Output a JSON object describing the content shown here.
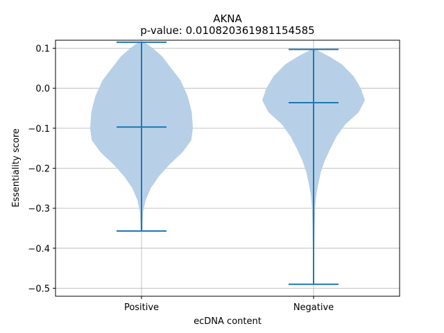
{
  "chart_data": {
    "type": "violin",
    "title": "AKNA",
    "subtitle": "p-value: 0.010820361981154585",
    "xlabel": "ecDNA content",
    "ylabel": "Essentiality score",
    "categories": [
      "Positive",
      "Negative"
    ],
    "ylim": [
      -0.52,
      0.12
    ],
    "yticks": [
      0.1,
      0.0,
      -0.1,
      -0.2,
      -0.3,
      -0.4,
      -0.5
    ],
    "ytick_labels": [
      "0.1",
      "0.0",
      "−0.1",
      "−0.2",
      "−0.3",
      "−0.4",
      "−0.5"
    ],
    "grid": true,
    "series": [
      {
        "category": "Positive",
        "max": 0.115,
        "median": -0.097,
        "min": -0.357,
        "density": [
          [
            0.115,
            0.06
          ],
          [
            0.1,
            0.22
          ],
          [
            0.08,
            0.4
          ],
          [
            0.05,
            0.58
          ],
          [
            0.02,
            0.76
          ],
          [
            -0.02,
            0.9
          ],
          [
            -0.06,
            0.98
          ],
          [
            -0.1,
            1.0
          ],
          [
            -0.13,
            0.97
          ],
          [
            -0.16,
            0.8
          ],
          [
            -0.19,
            0.55
          ],
          [
            -0.22,
            0.34
          ],
          [
            -0.25,
            0.18
          ],
          [
            -0.28,
            0.08
          ],
          [
            -0.31,
            0.03
          ],
          [
            -0.34,
            0.02
          ],
          [
            -0.357,
            0.02
          ]
        ]
      },
      {
        "category": "Negative",
        "max": 0.097,
        "median": -0.036,
        "min": -0.49,
        "density": [
          [
            0.097,
            0.04
          ],
          [
            0.08,
            0.3
          ],
          [
            0.06,
            0.55
          ],
          [
            0.03,
            0.78
          ],
          [
            0.0,
            0.92
          ],
          [
            -0.03,
            1.0
          ],
          [
            -0.06,
            0.88
          ],
          [
            -0.09,
            0.62
          ],
          [
            -0.12,
            0.45
          ],
          [
            -0.15,
            0.33
          ],
          [
            -0.18,
            0.22
          ],
          [
            -0.21,
            0.14
          ],
          [
            -0.24,
            0.09
          ],
          [
            -0.27,
            0.05
          ],
          [
            -0.3,
            0.03
          ],
          [
            -0.35,
            0.02
          ],
          [
            -0.4,
            0.015
          ],
          [
            -0.45,
            0.01
          ],
          [
            -0.49,
            0.008
          ]
        ]
      }
    ],
    "colors": {
      "body": "#b7d0e7",
      "lines": "#1f77b4",
      "grid": "#b0b0b0"
    }
  }
}
